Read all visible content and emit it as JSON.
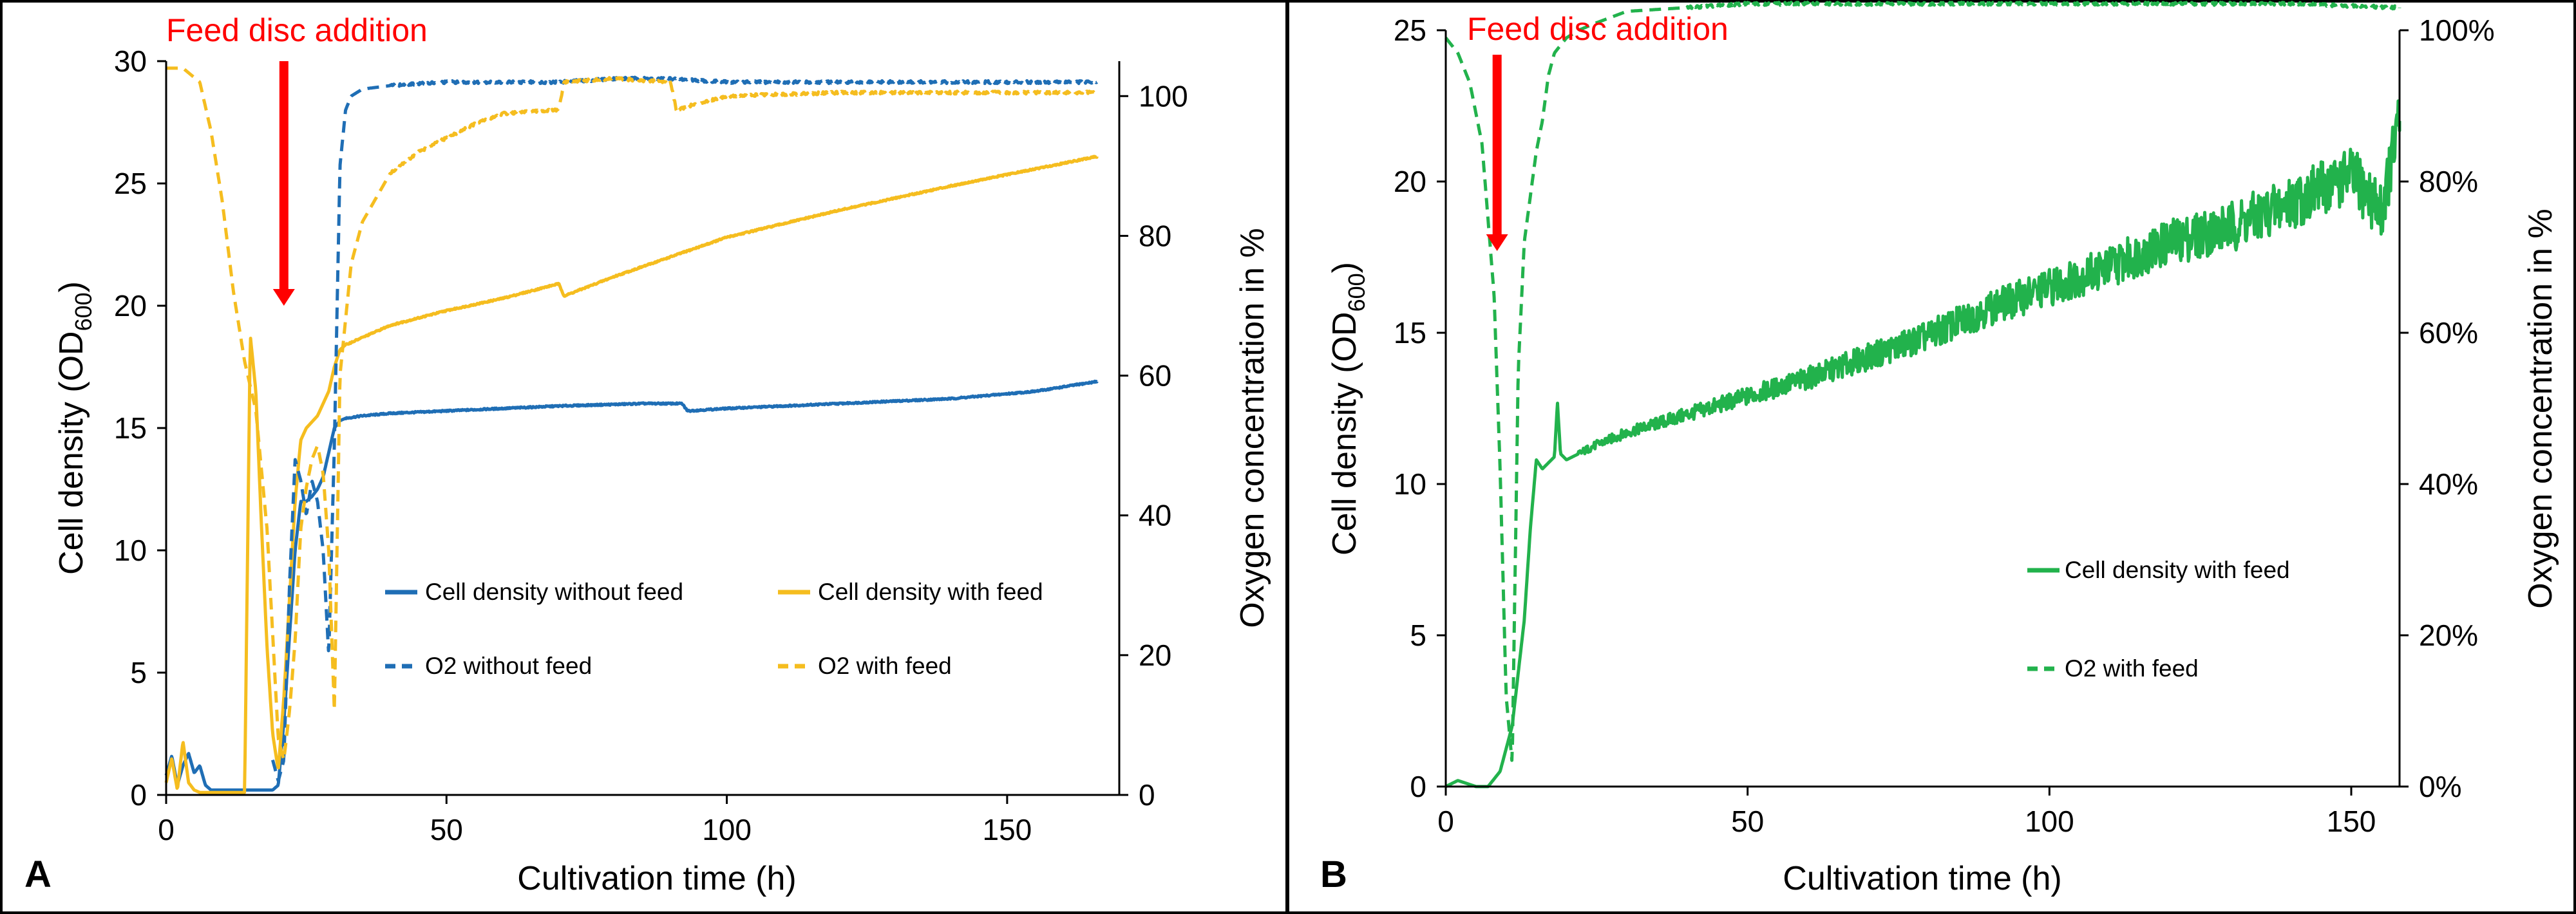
{
  "colors": {
    "blue": "#1f6eb5",
    "yellow": "#f5bd1f",
    "green": "#22b24c",
    "red": "#ff0000",
    "gray": "#a6a6a6"
  },
  "chart_data": [
    {
      "panel": "A",
      "type": "line",
      "xlabel": "Cultivation time (h)",
      "ylabel_main": "Cell density (OD",
      "ylabel_sub": "600",
      "ylabel_end": ")",
      "y2label": "Oxygen concentration in %",
      "xlim": [
        0,
        170
      ],
      "ylim": [
        0,
        30
      ],
      "y2lim": [
        0,
        105
      ],
      "x_ticks": [
        "0",
        "50",
        "100",
        "150"
      ],
      "y_ticks": [
        "0",
        "5",
        "10",
        "15",
        "20",
        "25",
        "30"
      ],
      "y2_ticks": [
        "0",
        "20",
        "40",
        "60",
        "80",
        "100"
      ],
      "annotation": {
        "text": "Feed disc addition",
        "x": 21
      },
      "legend": [
        "Cell density without feed",
        "Cell density with feed",
        "O2 without feed",
        "O2 with feed"
      ],
      "series": [
        {
          "name": "Cell density without feed",
          "axis": "left",
          "style": "solid",
          "color": "blue",
          "x": [
            0,
            1,
            2,
            3,
            4,
            5,
            6,
            7,
            8,
            19,
            20,
            21,
            22,
            23,
            24,
            25,
            26,
            27,
            28,
            29,
            30,
            31,
            32,
            35,
            40,
            50,
            70,
            85,
            92,
            93,
            100,
            120,
            140,
            155,
            166
          ],
          "y": [
            0.8,
            1.6,
            0.4,
            1.2,
            1.7,
            0.9,
            1.2,
            0.4,
            0.2,
            0.2,
            0.4,
            3.0,
            6.5,
            10.0,
            12.0,
            12.0,
            12.2,
            12.5,
            13.0,
            14.0,
            15.0,
            15.3,
            15.4,
            15.5,
            15.6,
            15.7,
            15.9,
            16.0,
            16.0,
            15.7,
            15.8,
            16.0,
            16.2,
            16.5,
            16.9
          ]
        },
        {
          "name": "Cell density with feed",
          "axis": "left",
          "style": "solid",
          "color": "yellow",
          "x": [
            0,
            1,
            2,
            3,
            4,
            5,
            6,
            14,
            15,
            16,
            17,
            18,
            19,
            20,
            21,
            22,
            23,
            24,
            25,
            27,
            29,
            30,
            31,
            32,
            35,
            40,
            50,
            60,
            70,
            71,
            80,
            90,
            95,
            100,
            120,
            140,
            166
          ],
          "y": [
            0.5,
            1.5,
            0.2,
            2.2,
            0.5,
            0.2,
            0.1,
            0.1,
            18.8,
            16.5,
            11.0,
            6.0,
            2.5,
            1.0,
            4.0,
            8.0,
            12.0,
            14.5,
            15.0,
            15.5,
            16.5,
            17.5,
            18.2,
            18.4,
            18.7,
            19.2,
            19.8,
            20.3,
            20.9,
            20.4,
            21.2,
            22.0,
            22.4,
            22.8,
            23.9,
            24.9,
            26.1
          ]
        },
        {
          "name": "O2 without feed",
          "axis": "right",
          "style": "dashed",
          "color": "blue",
          "x": [
            19,
            20,
            21,
            22,
            23,
            24,
            25,
            26,
            27,
            28,
            29,
            30,
            31,
            32,
            33,
            35,
            40,
            50,
            60,
            70,
            80,
            90,
            100,
            120,
            140,
            166
          ],
          "y": [
            5,
            2,
            5,
            30,
            48,
            45,
            40,
            45,
            42,
            35,
            20,
            50,
            90,
            98,
            100,
            101,
            101.5,
            102,
            102,
            102,
            102.5,
            102.5,
            102,
            102,
            102,
            102
          ]
        },
        {
          "name": "O2 with feed",
          "axis": "right",
          "style": "dashed",
          "color": "yellow",
          "x": [
            0,
            3,
            6,
            8,
            10,
            12,
            14,
            16,
            18,
            20,
            21,
            22,
            23,
            24,
            25,
            26,
            27,
            28,
            29,
            30,
            31,
            33,
            35,
            40,
            45,
            50,
            55,
            60,
            70,
            71,
            80,
            90,
            91,
            95,
            100,
            120,
            140,
            166
          ],
          "y": [
            104,
            104,
            102,
            95,
            85,
            72,
            62,
            55,
            38,
            8,
            5,
            12,
            22,
            38,
            44,
            48,
            50,
            46,
            35,
            12,
            60,
            76,
            82,
            89,
            92,
            94,
            96,
            97.5,
            98,
            102,
            102.5,
            102,
            98,
            99,
            100,
            100.5,
            100.5,
            100.5
          ]
        }
      ]
    },
    {
      "panel": "B",
      "type": "line",
      "xlabel": "Cultivation time (h)",
      "ylabel_main": "Cell density (OD",
      "ylabel_sub": "600",
      "ylabel_end": ")",
      "y2label": "Oxygen concentration in %",
      "xlim": [
        0,
        158
      ],
      "ylim": [
        0,
        25
      ],
      "y2lim": [
        0,
        1.0
      ],
      "x_ticks": [
        "0",
        "50",
        "100",
        "150"
      ],
      "y_ticks": [
        "0",
        "5",
        "10",
        "15",
        "20",
        "25"
      ],
      "y2_ticks": [
        "0%",
        "20%",
        "40%",
        "60%",
        "80%",
        "100%"
      ],
      "annotation": {
        "text": "Feed disc addition",
        "x": 8.5
      },
      "legend": [
        "Cell density with feed",
        "O2 with feed"
      ],
      "series": [
        {
          "name": "Cell density with feed",
          "axis": "left",
          "style": "solid",
          "color": "green",
          "x": [
            0,
            2,
            5,
            7,
            9,
            11,
            13,
            14,
            15,
            16,
            17,
            18,
            18.5,
            19,
            20,
            25,
            30,
            40,
            50,
            60,
            70,
            80,
            90,
            100,
            110,
            120,
            130,
            140,
            150,
            155,
            158
          ],
          "y": [
            0,
            0.2,
            0,
            0,
            0.5,
            2.0,
            5.5,
            8.5,
            10.8,
            10.5,
            10.7,
            10.9,
            12.7,
            11.0,
            10.8,
            11.3,
            11.7,
            12.3,
            12.9,
            13.5,
            14.2,
            14.9,
            15.8,
            16.5,
            17.2,
            18.0,
            18.5,
            19.3,
            20.2,
            19.0,
            22.0
          ]
        },
        {
          "name": "O2 with feed",
          "axis": "right",
          "style": "dashed",
          "color": "green",
          "x": [
            0,
            2,
            4,
            6,
            8,
            9,
            10,
            11,
            12,
            13,
            14,
            15,
            16,
            17,
            18,
            19,
            20,
            22,
            25,
            30,
            40,
            50,
            60,
            80,
            100,
            120,
            140,
            158
          ],
          "y": [
            0.99,
            0.97,
            0.93,
            0.85,
            0.65,
            0.42,
            0.12,
            0.03,
            0.55,
            0.72,
            0.78,
            0.84,
            0.88,
            0.94,
            0.97,
            0.98,
            0.99,
            1.0,
            1.01,
            1.025,
            1.03,
            1.035,
            1.035,
            1.035,
            1.035,
            1.035,
            1.035,
            1.03
          ]
        }
      ]
    }
  ]
}
